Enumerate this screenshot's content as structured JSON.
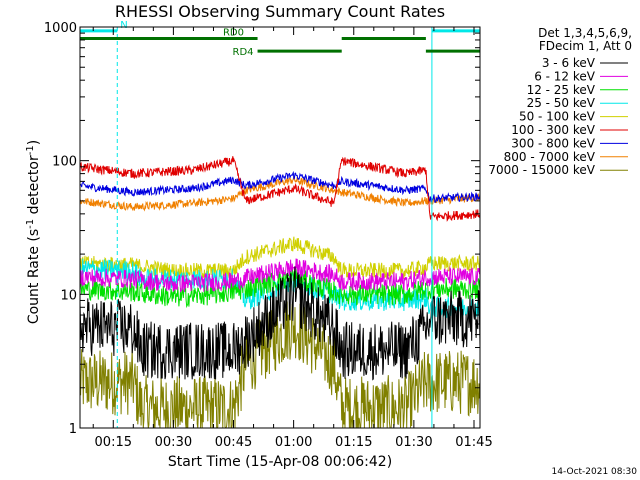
{
  "chart_data": {
    "type": "line",
    "title": "RHESSI Observing Summary Count Rates",
    "xlabel": "Start Time (15-Apr-08 00:06:42)",
    "ylabel_main": "Count Rate (s",
    "ylabel_sup1": "-1",
    "ylabel_mid": " detector",
    "ylabel_sup2": "-1",
    "ylabel_end": ")",
    "x_range_min": [
      6.7,
      106.5
    ],
    "y_range": [
      1,
      1000
    ],
    "y_scale": "log",
    "x_ticks": [
      {
        "min": 15,
        "label": "00:15"
      },
      {
        "min": 30,
        "label": "00:30"
      },
      {
        "min": 45,
        "label": "00:45"
      },
      {
        "min": 60,
        "label": "01:00"
      },
      {
        "min": 75,
        "label": "01:15"
      },
      {
        "min": 90,
        "label": "01:30"
      },
      {
        "min": 105,
        "label": "01:45"
      }
    ],
    "y_ticks": [
      {
        "value": 1,
        "label": "1"
      },
      {
        "value": 10,
        "label": "10"
      },
      {
        "value": 100,
        "label": "100"
      },
      {
        "value": 1000,
        "label": "1000"
      }
    ],
    "legend_header": [
      "Det 1,3,4,5,6,9,",
      "FDecim 1, Att 0"
    ],
    "legend_placement": "right",
    "series": [
      {
        "name": "3 - 6 keV",
        "color": "#000000",
        "knots": [
          [
            6.7,
            5.8
          ],
          [
            20,
            5.5
          ],
          [
            22,
            3.8
          ],
          [
            45,
            3.8
          ],
          [
            48,
            4.5
          ],
          [
            60,
            10
          ],
          [
            70,
            5.5
          ],
          [
            72,
            3.8
          ],
          [
            88,
            3.8
          ],
          [
            93,
            5.5
          ],
          [
            94,
            6.5
          ],
          [
            106.5,
            6.5
          ]
        ],
        "noise": 0.22
      },
      {
        "name": "6 - 12 keV",
        "color": "#e000e0",
        "knots": [
          [
            6.7,
            13.5
          ],
          [
            20,
            13
          ],
          [
            30,
            12
          ],
          [
            45,
            12.5
          ],
          [
            60,
            16
          ],
          [
            70,
            14
          ],
          [
            72,
            12.5
          ],
          [
            88,
            12.5
          ],
          [
            93,
            13.5
          ],
          [
            106.5,
            13.5
          ]
        ],
        "noise": 0.07
      },
      {
        "name": "12 - 25 keV",
        "color": "#00e000",
        "knots": [
          [
            6.7,
            11
          ],
          [
            20,
            10.5
          ],
          [
            30,
            9.5
          ],
          [
            40,
            10
          ],
          [
            45,
            10.5
          ],
          [
            60,
            13.5
          ],
          [
            72,
            10
          ],
          [
            88,
            10
          ],
          [
            93,
            11
          ],
          [
            106.5,
            11
          ]
        ],
        "noise": 0.08
      },
      {
        "name": "25 - 50 keV",
        "color": "#00e8e8",
        "knots": [
          [
            6.7,
            15.5
          ],
          [
            20,
            15
          ],
          [
            22,
            13
          ],
          [
            45,
            13
          ],
          [
            48,
            9
          ],
          [
            55,
            11
          ],
          [
            60,
            12.5
          ],
          [
            70,
            10
          ],
          [
            72,
            9
          ],
          [
            88,
            9
          ],
          [
            93,
            9.5
          ],
          [
            94,
            8
          ],
          [
            106.5,
            8
          ]
        ],
        "noise": 0.08
      },
      {
        "name": "50 - 100 keV",
        "color": "#d0d000",
        "knots": [
          [
            6.7,
            17
          ],
          [
            20,
            16.5
          ],
          [
            30,
            15
          ],
          [
            45,
            15
          ],
          [
            48,
            19
          ],
          [
            60,
            24
          ],
          [
            70,
            19
          ],
          [
            72,
            15
          ],
          [
            88,
            15
          ],
          [
            93,
            16
          ],
          [
            94,
            17
          ],
          [
            106.5,
            17
          ]
        ],
        "noise": 0.06
      },
      {
        "name": "100 - 300 keV",
        "color": "#e00000",
        "knots": [
          [
            6.7,
            90
          ],
          [
            20,
            80
          ],
          [
            35,
            85
          ],
          [
            45,
            100
          ],
          [
            48,
            50
          ],
          [
            60,
            62
          ],
          [
            70,
            48
          ],
          [
            72,
            100
          ],
          [
            88,
            80
          ],
          [
            93,
            85
          ],
          [
            94,
            38
          ],
          [
            106.5,
            40
          ]
        ],
        "noise": 0.035
      },
      {
        "name": "300 - 800 keV",
        "color": "#0000e0",
        "knots": [
          [
            6.7,
            65
          ],
          [
            20,
            58
          ],
          [
            35,
            62
          ],
          [
            45,
            72
          ],
          [
            48,
            65
          ],
          [
            60,
            78
          ],
          [
            70,
            65
          ],
          [
            72,
            70
          ],
          [
            88,
            60
          ],
          [
            93,
            62
          ],
          [
            94,
            52
          ],
          [
            106.5,
            54
          ]
        ],
        "noise": 0.03
      },
      {
        "name": "800 - 7000 keV",
        "color": "#f08000",
        "knots": [
          [
            6.7,
            50
          ],
          [
            20,
            45
          ],
          [
            35,
            48
          ],
          [
            45,
            52
          ],
          [
            48,
            60
          ],
          [
            60,
            72
          ],
          [
            70,
            60
          ],
          [
            72,
            58
          ],
          [
            88,
            48
          ],
          [
            93,
            50
          ],
          [
            94,
            50
          ],
          [
            106.5,
            53
          ]
        ],
        "noise": 0.03
      },
      {
        "name": "7000 - 15000 keV",
        "color": "#808000",
        "knots": [
          [
            6.7,
            2.2
          ],
          [
            20,
            2.2
          ],
          [
            22,
            1.4
          ],
          [
            45,
            1.4
          ],
          [
            48,
            3
          ],
          [
            60,
            6
          ],
          [
            70,
            3
          ],
          [
            72,
            1.4
          ],
          [
            88,
            1.4
          ],
          [
            93,
            2.2
          ],
          [
            106.5,
            2.2
          ]
        ],
        "noise": 0.25
      }
    ],
    "flags": [
      {
        "label": "N",
        "color": "#00e8e8",
        "y": 935,
        "segments": [
          [
            6.7,
            16
          ]
        ],
        "dashed": false
      },
      {
        "label": "",
        "color": "#00e8e8",
        "y": 935,
        "segments": [
          [
            94.5,
            106.5
          ]
        ],
        "dashed": false
      },
      {
        "label": "RD0",
        "color": "#007000",
        "y": 820,
        "segments": [
          [
            6.7,
            51
          ],
          [
            72,
            93
          ]
        ],
        "dashed": false
      },
      {
        "label": "RD4",
        "color": "#007000",
        "y": 660,
        "segments": [
          [
            51,
            72
          ],
          [
            93,
            106.5
          ]
        ],
        "dashed": false
      }
    ],
    "vlines": [
      {
        "min": 6.7,
        "dashed": false
      },
      {
        "min": 16,
        "dashed": true
      },
      {
        "min": 94.5,
        "dashed": false
      },
      {
        "min": 106.5,
        "dashed": true
      }
    ],
    "footer": "14-Oct-2021 08:30"
  }
}
